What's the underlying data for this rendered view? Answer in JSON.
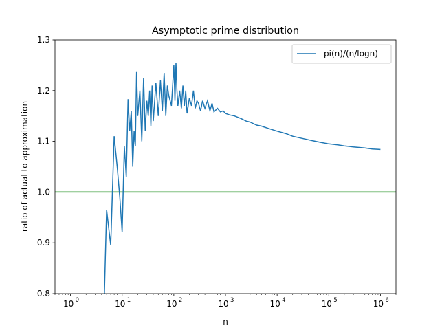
{
  "chart_data": {
    "type": "line",
    "title": "Asymptotic prime distribution",
    "xlabel": "n",
    "ylabel": "ratio of actual to approximation",
    "x_scale": "log",
    "xlim": [
      0.5,
      2000000
    ],
    "ylim": [
      0.8,
      1.3
    ],
    "y_ticks": [
      "0.8",
      "0.9",
      "1.0",
      "1.1",
      "1.2",
      "1.3"
    ],
    "x_ticks": [
      {
        "value": 1,
        "base": "10",
        "exp": "0"
      },
      {
        "value": 10,
        "base": "10",
        "exp": "1"
      },
      {
        "value": 100,
        "base": "10",
        "exp": "2"
      },
      {
        "value": 1000,
        "base": "10",
        "exp": "3"
      },
      {
        "value": 10000,
        "base": "10",
        "exp": "4"
      },
      {
        "value": 100000,
        "base": "10",
        "exp": "5"
      },
      {
        "value": 1000000,
        "base": "10",
        "exp": "6"
      }
    ],
    "grid": false,
    "legend_position": "top-right",
    "colors": {
      "series": "#1f77b4",
      "reference": "#008000"
    },
    "series": [
      {
        "name": "pi(n)/(n/logn)",
        "x": [
          4.5,
          5,
          6,
          7,
          8,
          9,
          10,
          11,
          12,
          13,
          14,
          15,
          16,
          17,
          18,
          19,
          20,
          22,
          24,
          26,
          28,
          30,
          32,
          34,
          36,
          38,
          40,
          45,
          50,
          55,
          60,
          65,
          70,
          75,
          80,
          90,
          100,
          105,
          110,
          115,
          120,
          130,
          140,
          150,
          160,
          170,
          180,
          200,
          220,
          240,
          260,
          280,
          300,
          330,
          360,
          400,
          450,
          500,
          550,
          600,
          700,
          800,
          900,
          1000,
          1200,
          1500,
          2000,
          2500,
          3000,
          4000,
          5000,
          7000,
          10000,
          15000,
          20000,
          30000,
          50000,
          70000,
          100000,
          150000,
          200000,
          300000,
          500000,
          700000,
          1000000
        ],
        "values": [
          0.79,
          0.965,
          0.895,
          1.11,
          1.05,
          0.99,
          0.921,
          1.09,
          1.03,
          1.183,
          1.12,
          1.16,
          1.05,
          1.12,
          1.09,
          1.238,
          1.15,
          1.2,
          1.1,
          1.225,
          1.12,
          1.18,
          1.15,
          1.2,
          1.13,
          1.21,
          1.14,
          1.215,
          1.15,
          1.22,
          1.16,
          1.235,
          1.15,
          1.21,
          1.19,
          1.17,
          1.25,
          1.18,
          1.255,
          1.2,
          1.17,
          1.2,
          1.165,
          1.21,
          1.17,
          1.2,
          1.155,
          1.185,
          1.17,
          1.2,
          1.165,
          1.18,
          1.175,
          1.16,
          1.18,
          1.165,
          1.18,
          1.16,
          1.175,
          1.158,
          1.165,
          1.158,
          1.16,
          1.155,
          1.152,
          1.15,
          1.145,
          1.14,
          1.138,
          1.132,
          1.13,
          1.125,
          1.12,
          1.115,
          1.11,
          1.106,
          1.101,
          1.098,
          1.095,
          1.093,
          1.091,
          1.089,
          1.087,
          1.085,
          1.084
        ]
      }
    ],
    "reference_line": {
      "y": 1.0
    }
  }
}
